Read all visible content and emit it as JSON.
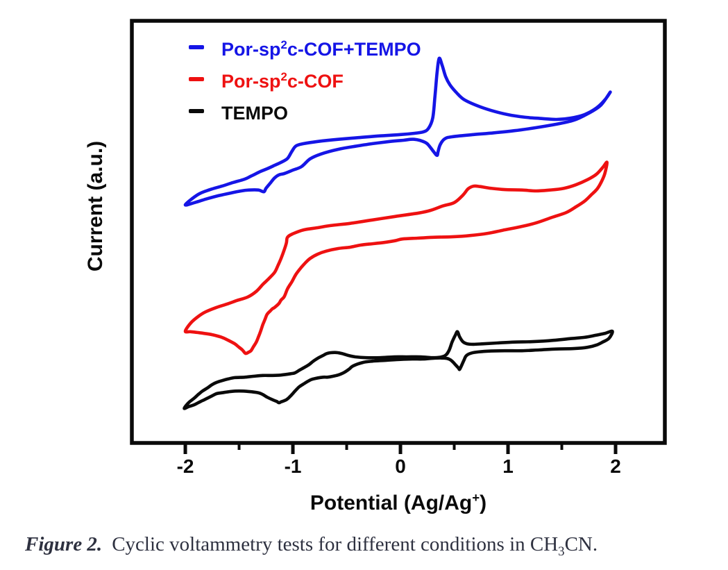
{
  "figure": {
    "caption": {
      "label": "Figure 2.",
      "text_pre": "Cyclic voltammetry tests for different conditions in CH",
      "sub": "3",
      "text_post": "CN."
    }
  },
  "legend": {
    "items": [
      {
        "pre": "Por-sp",
        "sup": "2",
        "post": "c-COF+TEMPO",
        "color": "#1515e6"
      },
      {
        "pre": "Por-sp",
        "sup": "2",
        "post": "c-COF",
        "color": "#ee1111"
      },
      {
        "pre": "TEMPO",
        "sup": "",
        "post": "",
        "color": "#0a0a0a"
      }
    ]
  },
  "chart_data": {
    "type": "line",
    "subtype": "cyclic-voltammetry",
    "title": "",
    "xlabel": "Potential (Ag/Ag+)",
    "ylabel": "Current (a.u.)",
    "grid": false,
    "legend_position": "top-left-inside",
    "x_axis": {
      "label_pre": "Potential (Ag/Ag",
      "label_sup": "+",
      "label_post": ")",
      "ticks": [
        -2,
        -1,
        0,
        1,
        2
      ],
      "minor_ticks": [
        -1.5,
        -0.5,
        0.5,
        1.5
      ],
      "range": [
        -2.497,
        2.458
      ]
    },
    "y_axis": {
      "label": "Current (a.u.)",
      "units": "arbitrary units, normalized 0-100",
      "ticks": [],
      "range": [
        0,
        100
      ]
    },
    "series": [
      {
        "name": "Por-sp2c-COF+TEMPO",
        "color": "#1515e6",
        "closed_loop": true,
        "points": [
          [
            -2.0,
            55.3
          ],
          [
            -1.88,
            57.7
          ],
          [
            -1.77,
            58.8
          ],
          [
            -1.66,
            59.6
          ],
          [
            -1.56,
            60.4
          ],
          [
            -1.45,
            61.2
          ],
          [
            -1.39,
            61.9
          ],
          [
            -1.3,
            63.0
          ],
          [
            -1.24,
            63.6
          ],
          [
            -1.17,
            64.4
          ],
          [
            -1.11,
            65.1
          ],
          [
            -1.05,
            66.0
          ],
          [
            -1.01,
            67.6
          ],
          [
            -0.97,
            68.9
          ],
          [
            -0.9,
            69.4
          ],
          [
            -0.77,
            69.9
          ],
          [
            -0.58,
            70.4
          ],
          [
            -0.39,
            70.8
          ],
          [
            -0.19,
            71.2
          ],
          [
            0.0,
            71.5
          ],
          [
            0.13,
            71.8
          ],
          [
            0.21,
            72.1
          ],
          [
            0.26,
            72.9
          ],
          [
            0.3,
            75.3
          ],
          [
            0.32,
            80.1
          ],
          [
            0.34,
            85.7
          ],
          [
            0.36,
            89.1
          ],
          [
            0.39,
            87.3
          ],
          [
            0.42,
            84.9
          ],
          [
            0.46,
            83.0
          ],
          [
            0.52,
            81.2
          ],
          [
            0.59,
            79.6
          ],
          [
            0.71,
            78.2
          ],
          [
            0.84,
            77.1
          ],
          [
            1.0,
            76.1
          ],
          [
            1.16,
            75.5
          ],
          [
            1.32,
            75.2
          ],
          [
            1.45,
            75.0
          ],
          [
            1.58,
            75.3
          ],
          [
            1.71,
            76.1
          ],
          [
            1.82,
            77.6
          ],
          [
            1.9,
            79.5
          ],
          [
            1.95,
            81.3
          ],
          [
            1.86,
            78.2
          ],
          [
            1.74,
            76.3
          ],
          [
            1.61,
            74.8
          ],
          [
            1.45,
            73.9
          ],
          [
            1.26,
            73.1
          ],
          [
            1.06,
            72.4
          ],
          [
            0.87,
            71.9
          ],
          [
            0.68,
            71.5
          ],
          [
            0.48,
            71.0
          ],
          [
            0.41,
            70.5
          ],
          [
            0.37,
            69.2
          ],
          [
            0.35,
            67.6
          ],
          [
            0.34,
            66.7
          ],
          [
            0.31,
            67.5
          ],
          [
            0.27,
            68.8
          ],
          [
            0.23,
            69.7
          ],
          [
            0.13,
            70.4
          ],
          [
            0.03,
            70.2
          ],
          [
            -0.1,
            69.9
          ],
          [
            -0.26,
            69.4
          ],
          [
            -0.42,
            68.8
          ],
          [
            -0.58,
            68.1
          ],
          [
            -0.74,
            67.0
          ],
          [
            -0.84,
            65.9
          ],
          [
            -0.92,
            64.1
          ],
          [
            -1.0,
            63.3
          ],
          [
            -1.08,
            62.5
          ],
          [
            -1.13,
            62.2
          ],
          [
            -1.17,
            61.5
          ],
          [
            -1.21,
            60.3
          ],
          [
            -1.25,
            59.1
          ],
          [
            -1.27,
            58.3
          ],
          [
            -1.32,
            58.7
          ],
          [
            -1.41,
            58.7
          ],
          [
            -1.48,
            58.5
          ],
          [
            -1.58,
            58.0
          ],
          [
            -1.69,
            57.4
          ],
          [
            -1.81,
            56.6
          ],
          [
            -1.9,
            55.9
          ]
        ]
      },
      {
        "name": "Por-sp2c-COF",
        "color": "#ee1111",
        "closed_loop": true,
        "points": [
          [
            -2.0,
            26.1
          ],
          [
            -1.95,
            28.0
          ],
          [
            -1.88,
            29.5
          ],
          [
            -1.81,
            30.6
          ],
          [
            -1.71,
            31.6
          ],
          [
            -1.61,
            32.4
          ],
          [
            -1.52,
            33.2
          ],
          [
            -1.42,
            34.0
          ],
          [
            -1.34,
            35.3
          ],
          [
            -1.28,
            36.9
          ],
          [
            -1.23,
            38.1
          ],
          [
            -1.17,
            39.7
          ],
          [
            -1.14,
            41.2
          ],
          [
            -1.11,
            42.9
          ],
          [
            -1.08,
            44.9
          ],
          [
            -1.06,
            46.5
          ],
          [
            -1.05,
            47.8
          ],
          [
            -1.0,
            48.6
          ],
          [
            -0.9,
            49.5
          ],
          [
            -0.77,
            50.0
          ],
          [
            -0.65,
            50.5
          ],
          [
            -0.47,
            51.0
          ],
          [
            -0.26,
            51.8
          ],
          [
            -0.05,
            52.6
          ],
          [
            0.17,
            53.4
          ],
          [
            0.28,
            54.0
          ],
          [
            0.39,
            55.0
          ],
          [
            0.5,
            55.8
          ],
          [
            0.58,
            57.5
          ],
          [
            0.63,
            59.0
          ],
          [
            0.68,
            59.6
          ],
          [
            0.74,
            59.5
          ],
          [
            0.84,
            59.1
          ],
          [
            0.97,
            58.8
          ],
          [
            1.13,
            58.7
          ],
          [
            1.26,
            58.5
          ],
          [
            1.39,
            58.7
          ],
          [
            1.52,
            59.1
          ],
          [
            1.63,
            59.9
          ],
          [
            1.74,
            61.1
          ],
          [
            1.82,
            62.3
          ],
          [
            1.88,
            63.9
          ],
          [
            1.92,
            65.1
          ],
          [
            1.9,
            62.5
          ],
          [
            1.87,
            60.7
          ],
          [
            1.83,
            59.0
          ],
          [
            1.77,
            57.5
          ],
          [
            1.71,
            56.1
          ],
          [
            1.63,
            54.8
          ],
          [
            1.54,
            53.5
          ],
          [
            1.41,
            52.4
          ],
          [
            1.26,
            51.1
          ],
          [
            1.11,
            50.2
          ],
          [
            0.95,
            49.4
          ],
          [
            0.81,
            48.7
          ],
          [
            0.65,
            48.2
          ],
          [
            0.48,
            47.9
          ],
          [
            0.32,
            47.8
          ],
          [
            0.16,
            47.6
          ],
          [
            0.02,
            47.4
          ],
          [
            -0.05,
            47.0
          ],
          [
            -0.15,
            46.6
          ],
          [
            -0.26,
            46.3
          ],
          [
            -0.37,
            46.0
          ],
          [
            -0.47,
            45.5
          ],
          [
            -0.58,
            45.2
          ],
          [
            -0.69,
            44.6
          ],
          [
            -0.77,
            43.9
          ],
          [
            -0.84,
            42.9
          ],
          [
            -0.88,
            42.0
          ],
          [
            -0.92,
            40.9
          ],
          [
            -0.97,
            39.3
          ],
          [
            -1.01,
            37.5
          ],
          [
            -1.05,
            35.9
          ],
          [
            -1.08,
            34.1
          ],
          [
            -1.11,
            33.3
          ],
          [
            -1.13,
            32.5
          ],
          [
            -1.17,
            31.6
          ],
          [
            -1.19,
            31.3
          ],
          [
            -1.21,
            30.8
          ],
          [
            -1.24,
            30.0
          ],
          [
            -1.26,
            28.8
          ],
          [
            -1.28,
            27.6
          ],
          [
            -1.3,
            26.1
          ],
          [
            -1.32,
            24.8
          ],
          [
            -1.34,
            23.6
          ],
          [
            -1.37,
            22.4
          ],
          [
            -1.39,
            21.6
          ],
          [
            -1.41,
            21.3
          ],
          [
            -1.44,
            21.0
          ],
          [
            -1.47,
            21.8
          ],
          [
            -1.5,
            22.4
          ],
          [
            -1.54,
            23.2
          ],
          [
            -1.6,
            24.0
          ],
          [
            -1.66,
            24.7
          ],
          [
            -1.75,
            25.3
          ],
          [
            -1.82,
            25.6
          ],
          [
            -1.88,
            25.8
          ],
          [
            -1.95,
            26.0
          ]
        ]
      },
      {
        "name": "TEMPO",
        "color": "#0a0a0a",
        "closed_loop": true,
        "points": [
          [
            -2.01,
            8.3
          ],
          [
            -1.97,
            9.6
          ],
          [
            -1.92,
            10.6
          ],
          [
            -1.88,
            11.5
          ],
          [
            -1.84,
            12.3
          ],
          [
            -1.79,
            13.1
          ],
          [
            -1.75,
            13.8
          ],
          [
            -1.71,
            14.3
          ],
          [
            -1.66,
            14.7
          ],
          [
            -1.6,
            15.1
          ],
          [
            -1.54,
            15.4
          ],
          [
            -1.45,
            15.5
          ],
          [
            -1.37,
            15.7
          ],
          [
            -1.28,
            15.9
          ],
          [
            -1.19,
            15.9
          ],
          [
            -1.11,
            16.0
          ],
          [
            -1.02,
            16.3
          ],
          [
            -0.98,
            16.5
          ],
          [
            -0.94,
            17.1
          ],
          [
            -0.89,
            17.8
          ],
          [
            -0.85,
            18.4
          ],
          [
            -0.81,
            19.2
          ],
          [
            -0.76,
            20.0
          ],
          [
            -0.72,
            20.5
          ],
          [
            -0.68,
            21.0
          ],
          [
            -0.61,
            21.2
          ],
          [
            -0.55,
            21.0
          ],
          [
            -0.48,
            20.5
          ],
          [
            -0.42,
            20.2
          ],
          [
            -0.32,
            20.0
          ],
          [
            -0.19,
            20.0
          ],
          [
            -0.06,
            20.2
          ],
          [
            0.06,
            20.2
          ],
          [
            0.19,
            20.2
          ],
          [
            0.32,
            20.0
          ],
          [
            0.41,
            20.4
          ],
          [
            0.45,
            21.6
          ],
          [
            0.48,
            23.6
          ],
          [
            0.51,
            25.2
          ],
          [
            0.53,
            26.0
          ],
          [
            0.55,
            24.8
          ],
          [
            0.58,
            23.7
          ],
          [
            0.62,
            23.2
          ],
          [
            0.68,
            23.1
          ],
          [
            0.77,
            23.2
          ],
          [
            0.9,
            23.4
          ],
          [
            1.06,
            23.6
          ],
          [
            1.23,
            23.7
          ],
          [
            1.42,
            24.0
          ],
          [
            1.58,
            24.4
          ],
          [
            1.71,
            24.7
          ],
          [
            1.82,
            25.2
          ],
          [
            1.9,
            25.6
          ],
          [
            1.97,
            26.1
          ],
          [
            1.94,
            24.5
          ],
          [
            1.88,
            23.6
          ],
          [
            1.82,
            22.9
          ],
          [
            1.74,
            22.4
          ],
          [
            1.61,
            22.1
          ],
          [
            1.45,
            22.0
          ],
          [
            1.29,
            21.8
          ],
          [
            1.13,
            21.6
          ],
          [
            0.97,
            21.6
          ],
          [
            0.81,
            21.5
          ],
          [
            0.71,
            21.3
          ],
          [
            0.65,
            21.0
          ],
          [
            0.61,
            20.4
          ],
          [
            0.59,
            19.4
          ],
          [
            0.57,
            18.3
          ],
          [
            0.55,
            17.3
          ],
          [
            0.54,
            17.6
          ],
          [
            0.51,
            18.4
          ],
          [
            0.48,
            19.2
          ],
          [
            0.45,
            19.7
          ],
          [
            0.41,
            19.9
          ],
          [
            0.32,
            19.9
          ],
          [
            0.21,
            19.7
          ],
          [
            0.11,
            19.7
          ],
          [
            0.0,
            19.6
          ],
          [
            -0.13,
            19.4
          ],
          [
            -0.26,
            19.2
          ],
          [
            -0.35,
            18.9
          ],
          [
            -0.44,
            18.1
          ],
          [
            -0.48,
            17.3
          ],
          [
            -0.53,
            16.5
          ],
          [
            -0.58,
            16.0
          ],
          [
            -0.63,
            15.7
          ],
          [
            -0.68,
            15.5
          ],
          [
            -0.72,
            15.5
          ],
          [
            -0.81,
            15.1
          ],
          [
            -0.85,
            14.7
          ],
          [
            -0.89,
            14.1
          ],
          [
            -0.94,
            13.3
          ],
          [
            -0.98,
            12.3
          ],
          [
            -1.02,
            11.2
          ],
          [
            -1.06,
            10.3
          ],
          [
            -1.11,
            9.8
          ],
          [
            -1.13,
            9.6
          ],
          [
            -1.15,
            9.9
          ],
          [
            -1.19,
            10.3
          ],
          [
            -1.24,
            10.9
          ],
          [
            -1.28,
            11.5
          ],
          [
            -1.32,
            11.9
          ],
          [
            -1.41,
            12.2
          ],
          [
            -1.5,
            12.3
          ],
          [
            -1.58,
            12.2
          ],
          [
            -1.66,
            11.9
          ],
          [
            -1.71,
            11.7
          ],
          [
            -1.75,
            11.2
          ],
          [
            -1.79,
            10.7
          ],
          [
            -1.84,
            10.1
          ],
          [
            -1.88,
            9.6
          ],
          [
            -1.92,
            9.1
          ],
          [
            -1.97,
            8.7
          ]
        ]
      }
    ]
  }
}
